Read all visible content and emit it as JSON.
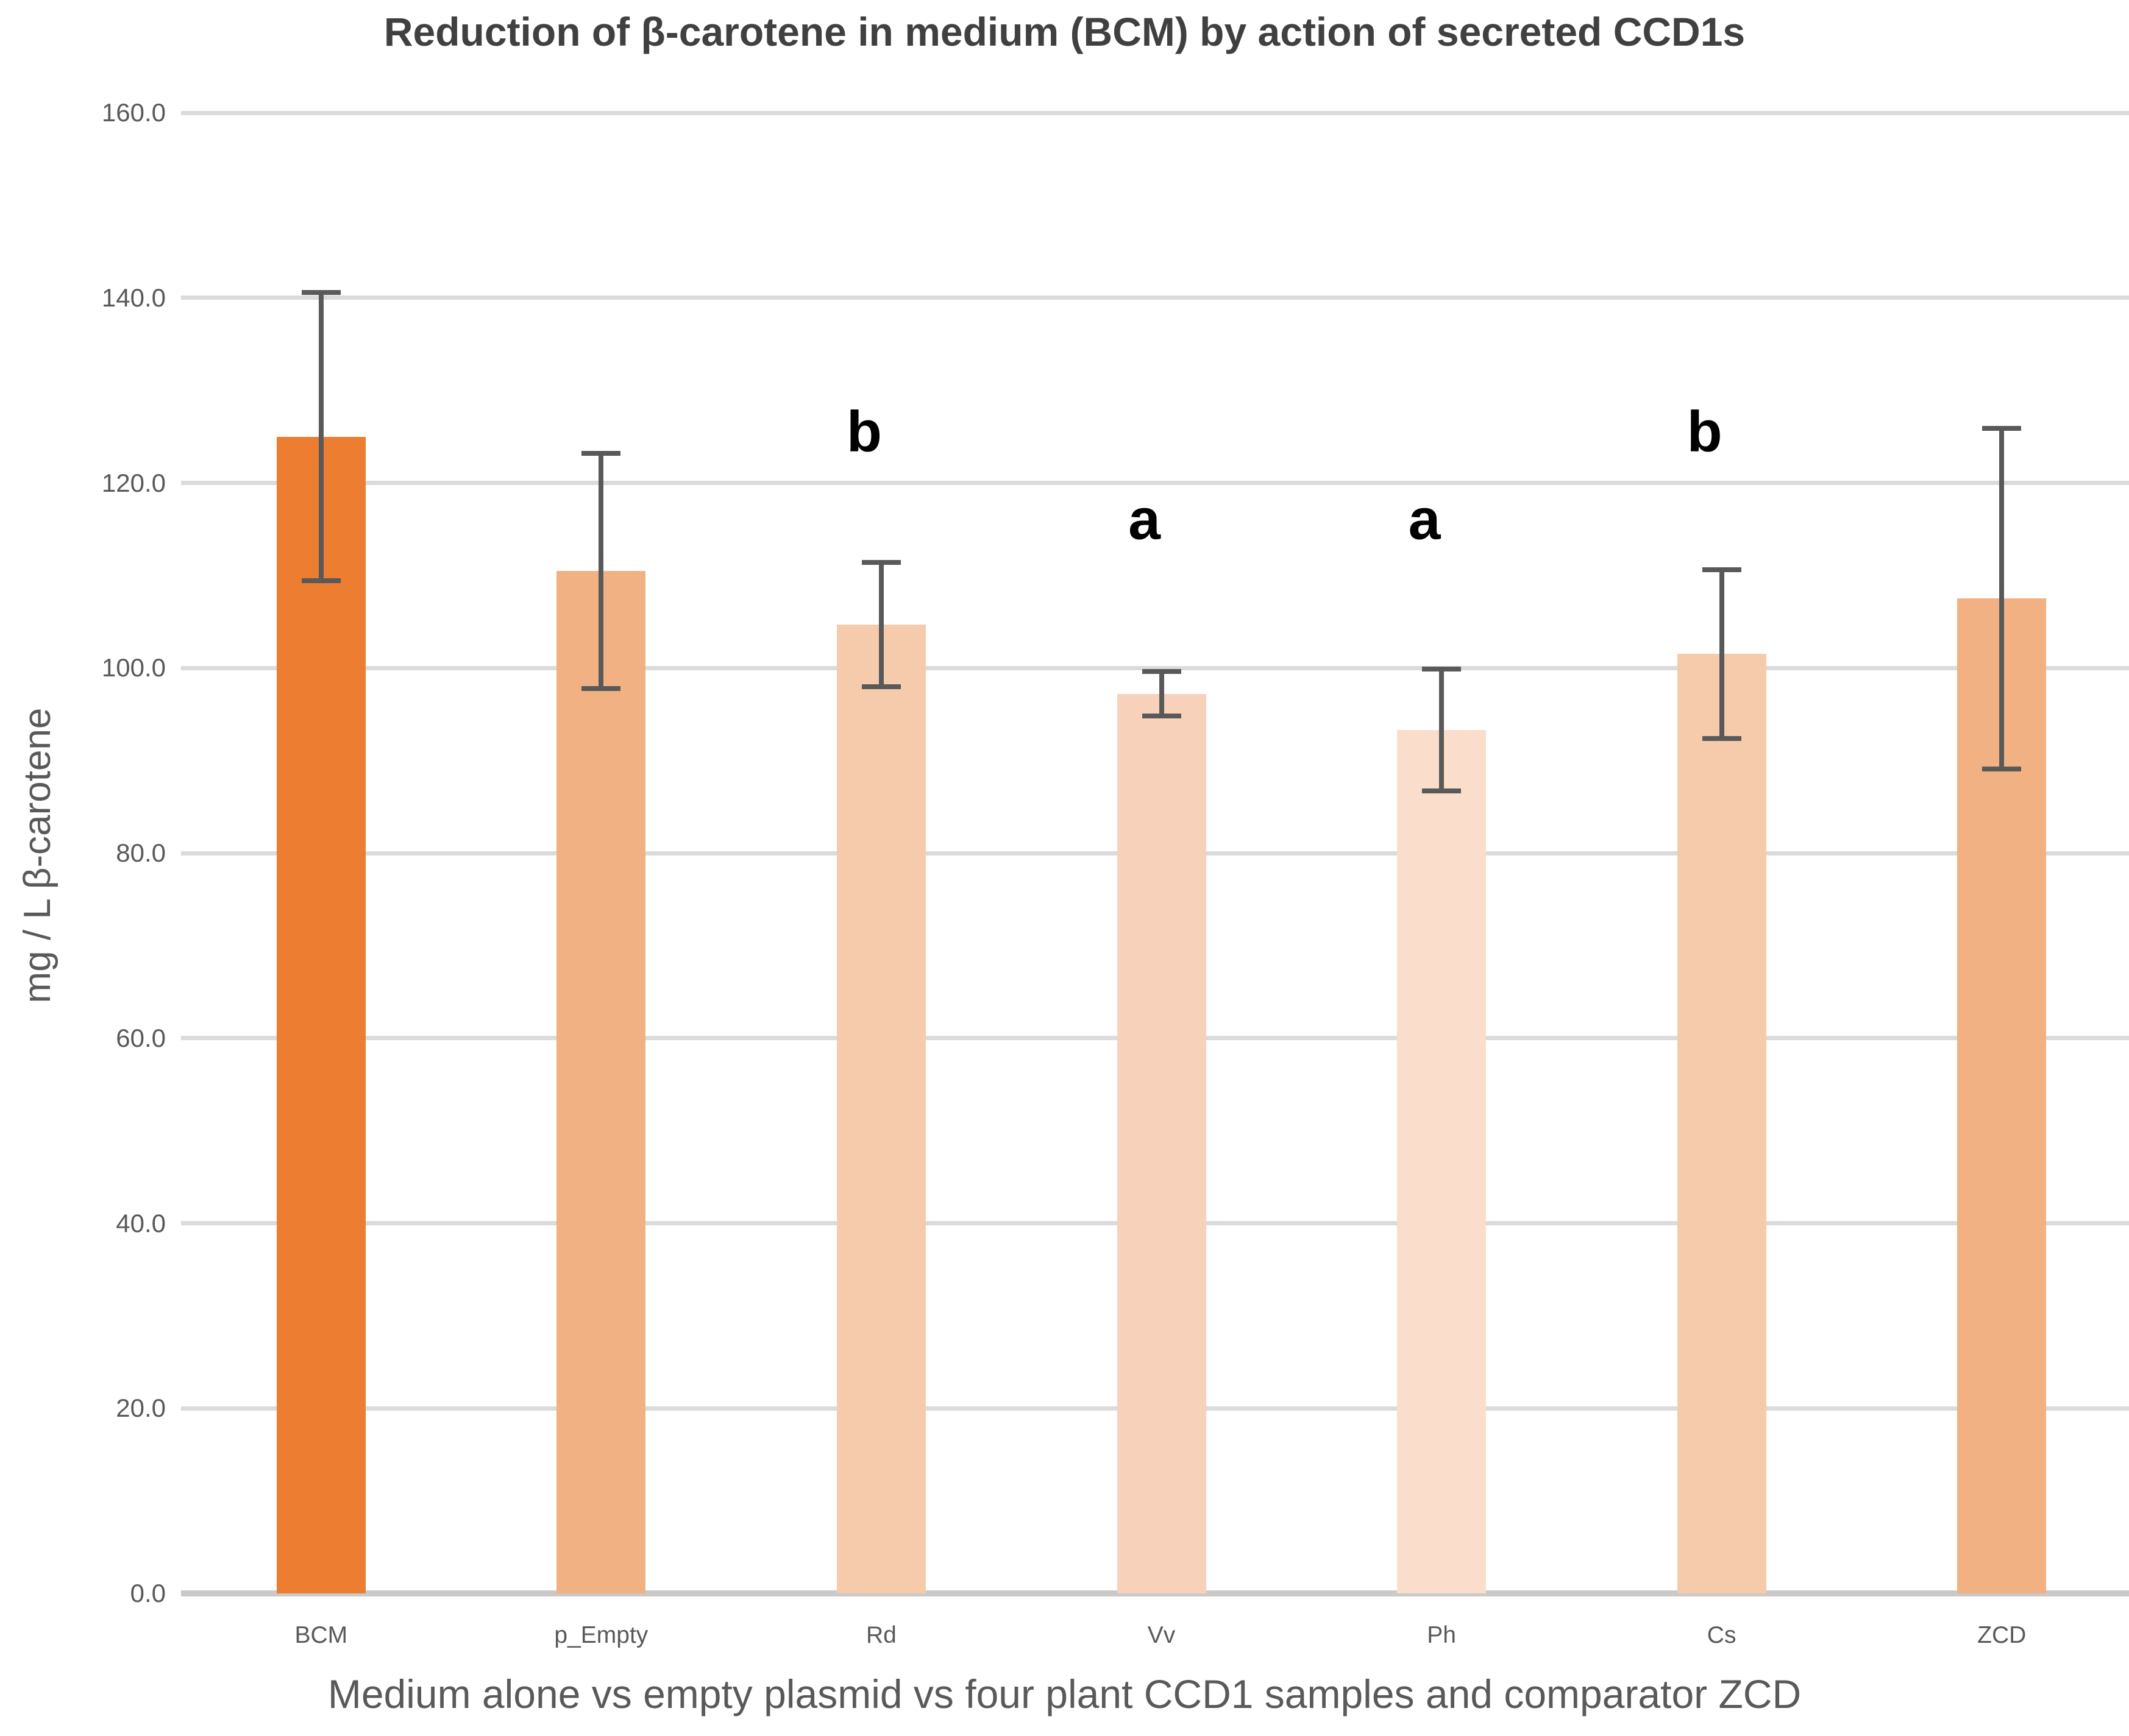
{
  "chart_data": {
    "type": "bar",
    "title": "Reduction of β-carotene in medium (BCM) by action of secreted CCD1s",
    "xlabel": "Medium alone vs empty plasmid vs four plant CCD1 samples and comparator ZCD",
    "ylabel": "mg / L β-carotene",
    "ylim": [
      0,
      160
    ],
    "ytick_step": 20,
    "ytick_decimals": 1,
    "grid": true,
    "legend": "none",
    "categories": [
      "BCM",
      "p_Empty",
      "Rd",
      "Vv",
      "Ph",
      "Cs",
      "ZCD"
    ],
    "values": [
      125.0,
      110.5,
      104.7,
      97.2,
      93.3,
      101.5,
      107.5
    ],
    "error_bars": [
      15.6,
      12.7,
      6.7,
      2.4,
      6.6,
      9.1,
      18.4
    ],
    "bar_colors": [
      "#ED7D31",
      "#F2B183",
      "#F6CBAC",
      "#F8D1BB",
      "#FADDCB",
      "#F6CBAC",
      "#F2B183"
    ],
    "annotations": [
      {
        "category": "Rd",
        "label": "b",
        "y": 125.5
      },
      {
        "category": "Vv",
        "label": "a",
        "y": 116.0
      },
      {
        "category": "Ph",
        "label": "a",
        "y": 116.0
      },
      {
        "category": "Cs",
        "label": "b",
        "y": 125.5
      }
    ],
    "style": {
      "background": "#FFFFFF",
      "grid_color": "#DBDBDB",
      "axis_line_color": "#C9C9C9",
      "error_bar_color": "#595959",
      "tick_label_color": "#595959",
      "axis_title_color": "#595959",
      "title_color": "#404040",
      "annotation_color": "#000000"
    }
  }
}
